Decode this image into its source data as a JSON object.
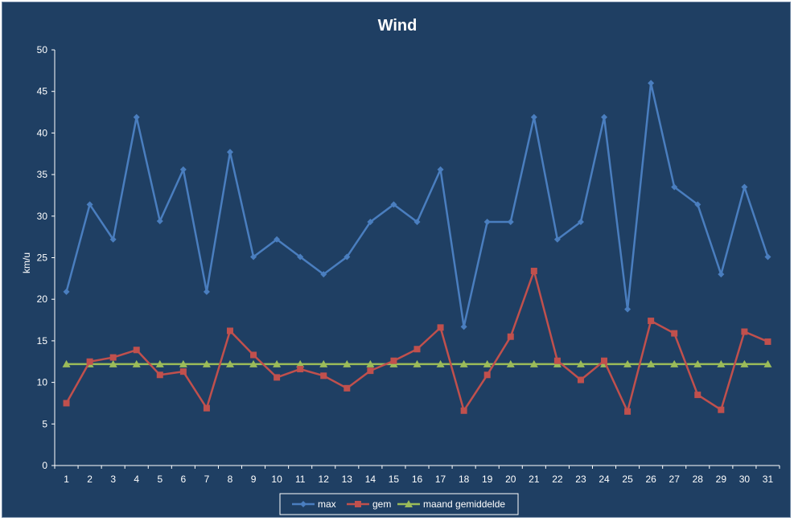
{
  "chart_data": {
    "type": "line",
    "title": "Wind",
    "xlabel": "",
    "ylabel": "km/u",
    "ylim": [
      0,
      50
    ],
    "yticks": [
      "0",
      "5",
      "10",
      "15",
      "20",
      "25",
      "30",
      "35",
      "40",
      "45",
      "50"
    ],
    "categories": [
      "1",
      "2",
      "3",
      "4",
      "5",
      "6",
      "7",
      "8",
      "9",
      "10",
      "11",
      "12",
      "13",
      "14",
      "15",
      "16",
      "17",
      "18",
      "19",
      "20",
      "21",
      "22",
      "23",
      "24",
      "25",
      "26",
      "27",
      "28",
      "29",
      "30",
      "31"
    ],
    "grid": false,
    "legend_position": "bottom",
    "background": "#1f3f63",
    "series": [
      {
        "name": "max",
        "color": "#4a7ebf",
        "marker": "diamond",
        "values": [
          20.9,
          31.4,
          27.2,
          41.9,
          29.4,
          35.6,
          20.9,
          37.7,
          25.1,
          27.2,
          25.1,
          23.0,
          25.1,
          29.3,
          31.4,
          29.3,
          35.6,
          16.7,
          29.3,
          29.3,
          41.9,
          27.2,
          29.3,
          41.9,
          18.8,
          46.0,
          33.5,
          31.4,
          23.0,
          33.5,
          25.1
        ]
      },
      {
        "name": "gem",
        "color": "#c0504d",
        "marker": "square",
        "values": [
          7.5,
          12.5,
          13.0,
          13.9,
          10.9,
          11.3,
          6.9,
          16.2,
          13.3,
          10.6,
          11.6,
          10.8,
          9.3,
          11.4,
          12.6,
          14.0,
          16.6,
          6.6,
          10.9,
          15.5,
          23.4,
          12.6,
          10.3,
          12.6,
          6.5,
          17.4,
          15.9,
          8.5,
          6.7,
          16.1,
          14.9
        ]
      },
      {
        "name": "maand gemiddelde",
        "color": "#9bbb59",
        "marker": "triangle",
        "values": [
          12.2,
          12.2,
          12.2,
          12.2,
          12.2,
          12.2,
          12.2,
          12.2,
          12.2,
          12.2,
          12.2,
          12.2,
          12.2,
          12.2,
          12.2,
          12.2,
          12.2,
          12.2,
          12.2,
          12.2,
          12.2,
          12.2,
          12.2,
          12.2,
          12.2,
          12.2,
          12.2,
          12.2,
          12.2,
          12.2,
          12.2
        ]
      }
    ]
  }
}
